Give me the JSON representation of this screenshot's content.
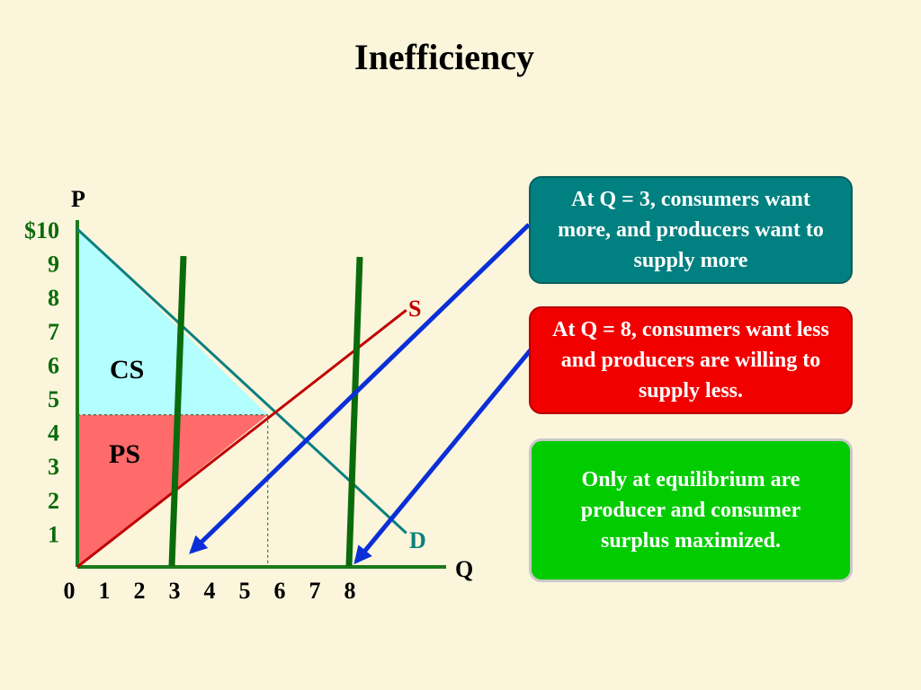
{
  "slide": {
    "title": "Inefficiency"
  },
  "callouts": [
    {
      "text": "At Q = 3, consumers want more, and producers want to supply more",
      "color": "#008080"
    },
    {
      "text": "At Q = 8, consumers want less and producers are willing to supply less.",
      "color": "#f20000"
    },
    {
      "text": "Only at equilibrium are producer and consumer surplus maximized.",
      "color": "#00cc00"
    }
  ],
  "chart_data": {
    "type": "line",
    "ylabel": "P",
    "xlabel": "Q",
    "x_ticks": [
      "0",
      "1",
      "2",
      "3",
      "4",
      "5",
      "6",
      "7",
      "8"
    ],
    "y_ticks": [
      "$10",
      "9",
      "8",
      "7",
      "6",
      "5",
      "4",
      "3",
      "2",
      "1"
    ],
    "xlim": [
      0,
      10.5
    ],
    "ylim": [
      0,
      10
    ],
    "series": [
      {
        "name": "D",
        "color": "#0b8080",
        "x": [
          0,
          9.5
        ],
        "y": [
          10,
          1
        ]
      },
      {
        "name": "S",
        "color": "#c00000",
        "x": [
          0,
          9.5
        ],
        "y": [
          0,
          7.6
        ]
      }
    ],
    "equilibrium": {
      "q": 5.5,
      "p": 4.5
    },
    "areas": [
      {
        "label": "CS",
        "color": "#b3ffff"
      },
      {
        "label": "PS",
        "color": "#ff6a6a"
      }
    ],
    "quantity_markers": [
      3,
      8
    ],
    "marker_color": "#0a6b0a",
    "arrow_color": "#0b2fd6",
    "axis_color": "#1a7a1a",
    "tick_color": "#0a6b0a"
  }
}
